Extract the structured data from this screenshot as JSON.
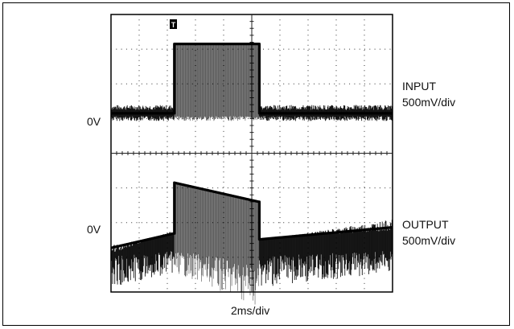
{
  "chart_data": {
    "type": "line",
    "title": "",
    "xlabel": "2ms/div",
    "ylabel": "",
    "grid": true,
    "divisions": {
      "x": 10,
      "y": 8
    },
    "trigger_marker": "T",
    "x_unit": "ms",
    "x": [
      0,
      4.5,
      10.5,
      20
    ],
    "series": [
      {
        "name": "INPUT",
        "scale_label": "500mV/div",
        "zero_label": "0V",
        "zero_level_div": 5.15,
        "edge_times_ms": [
          4.5,
          10.5
        ],
        "envelope_top_div": [
          0.2,
          0.2,
          2.0,
          0.2
        ],
        "envelope_bottom_div": [
          -0.2,
          -0.2,
          -0.2,
          -0.2
        ]
      },
      {
        "name": "OUTPUT",
        "scale_label": "500mV/div",
        "zero_label": "0V",
        "zero_level_div": 1.55,
        "edge_times_ms": [
          4.5,
          10.5
        ],
        "envelope_top_div": [
          -0.4,
          0.2,
          1.6,
          -0.05
        ],
        "envelope_bottom_div": [
          -1.3,
          -0.9,
          -1.8,
          -1.3
        ]
      }
    ]
  }
}
